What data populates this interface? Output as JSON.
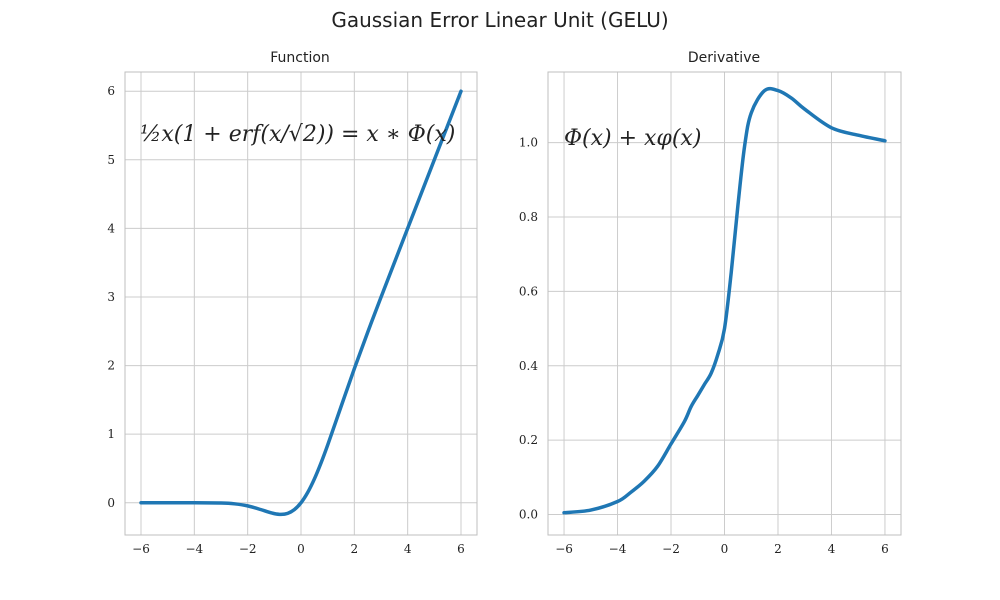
{
  "title": "Gaussian Error Linear Unit (GELU)",
  "colors": {
    "line": "#1f77b4",
    "grid": "#cccccc",
    "spine": "#bfbfbf"
  },
  "chart_data": [
    {
      "type": "line",
      "title": "Function",
      "annotation": "½x(1 + erf(x/√2)) = x ∗ Φ(x)",
      "xlim": [
        -6.6,
        6.6
      ],
      "ylim": [
        -0.47,
        6.28
      ],
      "xticks": [
        -6,
        -4,
        -2,
        0,
        2,
        4,
        6
      ],
      "xtick_labels": [
        "−6",
        "−4",
        "−2",
        "0",
        "2",
        "4",
        "6"
      ],
      "yticks": [
        0,
        1,
        2,
        3,
        4,
        5,
        6
      ],
      "ytick_labels": [
        "0",
        "1",
        "2",
        "3",
        "4",
        "5",
        "6"
      ],
      "grid": true,
      "series": [
        {
          "x": [
            -6,
            -5,
            -4,
            -3,
            -2.5,
            -2,
            -1.5,
            -1.25,
            -1,
            -0.75,
            -0.5,
            -0.25,
            0,
            0.25,
            0.5,
            0.75,
            1,
            1.5,
            2,
            2.5,
            3,
            4,
            5,
            6
          ],
          "values": [
            0,
            0,
            -0.0001,
            -0.004,
            -0.0155,
            -0.0455,
            -0.1002,
            -0.132,
            -0.1587,
            -0.17,
            -0.1543,
            -0.1003,
            0,
            0.1497,
            0.3457,
            0.5798,
            0.8413,
            1.3998,
            1.9545,
            2.4845,
            2.996,
            3.9999,
            5,
            6
          ]
        }
      ]
    },
    {
      "type": "line",
      "title": "Derivative",
      "annotation": "Φ(x) + xφ(x)",
      "xlim": [
        -6.6,
        6.6
      ],
      "ylim": [
        -0.055,
        1.19
      ],
      "xticks": [
        -6,
        -4,
        -2,
        0,
        2,
        4,
        6
      ],
      "xtick_labels": [
        "−6",
        "−4",
        "−2",
        "0",
        "2",
        "4",
        "6"
      ],
      "yticks": [
        0,
        0.2,
        0.4,
        0.6,
        0.8,
        1.0
      ],
      "ytick_labels": [
        "0.0",
        "0.2",
        "0.4",
        "0.6",
        "0.8",
        "1.0"
      ],
      "grid": true,
      "series": [
        {
          "x": [
            -6,
            -5,
            -4,
            -3.5,
            -3,
            -2.5,
            -2,
            -1.5,
            -1.25,
            -1,
            -0.75,
            -0.5,
            -0.25,
            0,
            0.25,
            0.5,
            0.75,
            1,
            1.5,
            2,
            2.5,
            3,
            4,
            5,
            6
          ],
          "values": [
            0.005,
            0.012,
            0.035,
            0.06,
            0.09,
            0.13,
            0.19,
            0.25,
            0.29,
            0.32,
            0.35,
            0.38,
            0.43,
            0.5,
            0.65,
            0.83,
            0.99,
            1.08,
            1.14,
            1.14,
            1.12,
            1.09,
            1.04,
            1.02,
            1.005
          ]
        }
      ]
    }
  ]
}
